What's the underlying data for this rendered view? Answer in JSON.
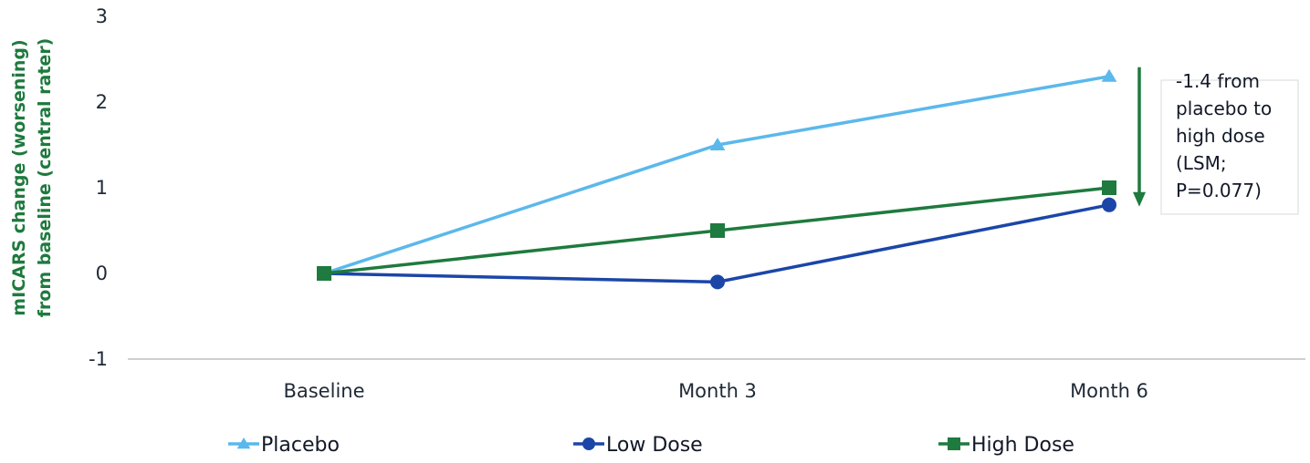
{
  "chart_data": {
    "type": "line",
    "categories": [
      "Baseline",
      "Month 3",
      "Month 6"
    ],
    "ylabel": [
      "mICARS change (worsening)",
      "from baseline (central rater)"
    ],
    "ylim": [
      -1,
      3
    ],
    "yticks": [
      "-1",
      "0",
      "1",
      "2",
      "3"
    ],
    "grid": false,
    "legend_position": "bottom",
    "series": [
      {
        "name": "Placebo",
        "values": [
          0,
          1.5,
          2.3
        ],
        "color": "#5bb8ec",
        "marker": "triangle"
      },
      {
        "name": "Low Dose",
        "values": [
          0,
          -0.1,
          0.8
        ],
        "color": "#1b46a8",
        "marker": "circle"
      },
      {
        "name": "High Dose",
        "values": [
          0,
          0.5,
          1.0
        ],
        "color": "#1e7a3e",
        "marker": "square"
      }
    ],
    "annotation": {
      "lines": [
        "-1.4 from",
        "placebo to",
        "high dose",
        "(LSM;",
        "P=0.077)"
      ],
      "arrow_from": 2.3,
      "arrow_to": 0.8,
      "arrow_color": "#1e7a3e"
    },
    "ylabel_color": "#1e7a3e",
    "axis_color": "#bfbfbf"
  }
}
